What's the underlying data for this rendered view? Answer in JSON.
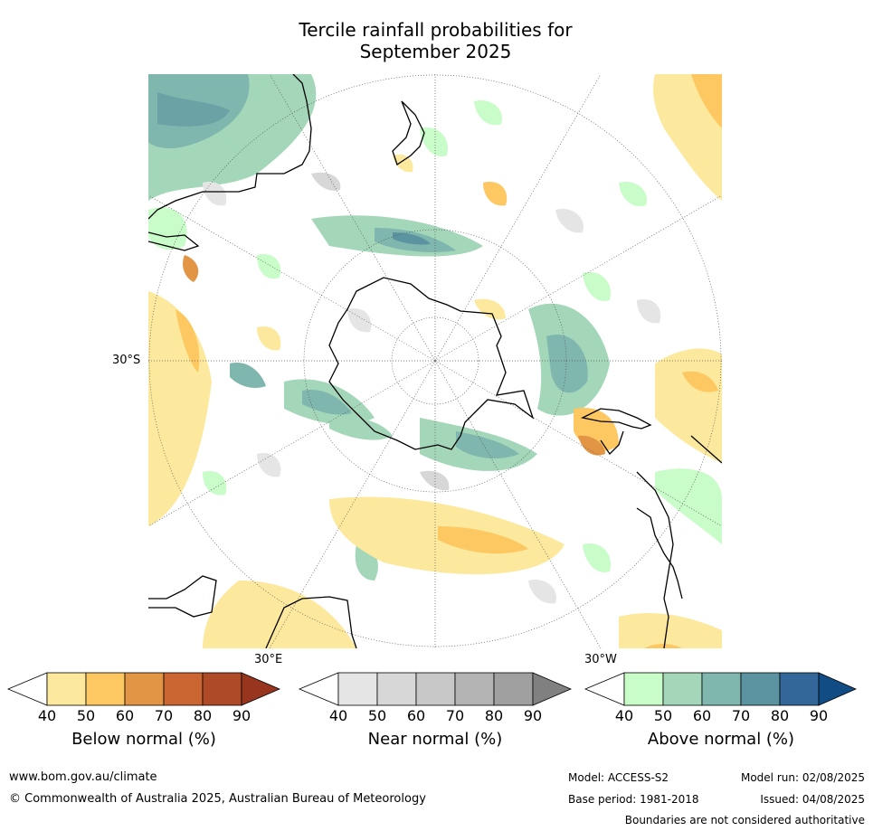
{
  "title_line1": "Tercile rainfall probabilities for",
  "title_line2": "September 2025",
  "map": {
    "projection": "south-polar-stereographic",
    "labels": {
      "lat": "30°S",
      "lon_east": "30°E",
      "lon_west": "30°W"
    },
    "graticule": "dotted"
  },
  "colorbars": [
    {
      "title": "Below normal (%)",
      "ticks": [
        "40",
        "50",
        "60",
        "70",
        "80",
        "90"
      ],
      "colors": [
        "#ffffff",
        "#fde99d",
        "#fdc862",
        "#e29545",
        "#cb6531",
        "#ae4a27",
        "#98351f"
      ]
    },
    {
      "title": "Near normal (%)",
      "ticks": [
        "40",
        "50",
        "60",
        "70",
        "80",
        "90"
      ],
      "colors": [
        "#ffffff",
        "#e5e5e5",
        "#d7d7d7",
        "#c8c8c8",
        "#b4b4b4",
        "#a0a0a0",
        "#808080"
      ]
    },
    {
      "title": "Above normal (%)",
      "ticks": [
        "40",
        "50",
        "60",
        "70",
        "80",
        "90"
      ],
      "colors": [
        "#ffffff",
        "#c8fcc8",
        "#a4d7b9",
        "#7fb7ae",
        "#5b94a0",
        "#336799",
        "#124c84"
      ]
    }
  ],
  "footer": {
    "website": "www.bom.gov.au/climate",
    "copyright": "© Commonwealth of Australia 2025, Australian Bureau of Meteorology",
    "model": "Model: ACCESS-S2",
    "base_period": "Base period: 1981-2018",
    "model_run": "Model run: 02/08/2025",
    "issued": "Issued: 04/08/2025",
    "boundaries": "Boundaries are not considered authoritative"
  }
}
